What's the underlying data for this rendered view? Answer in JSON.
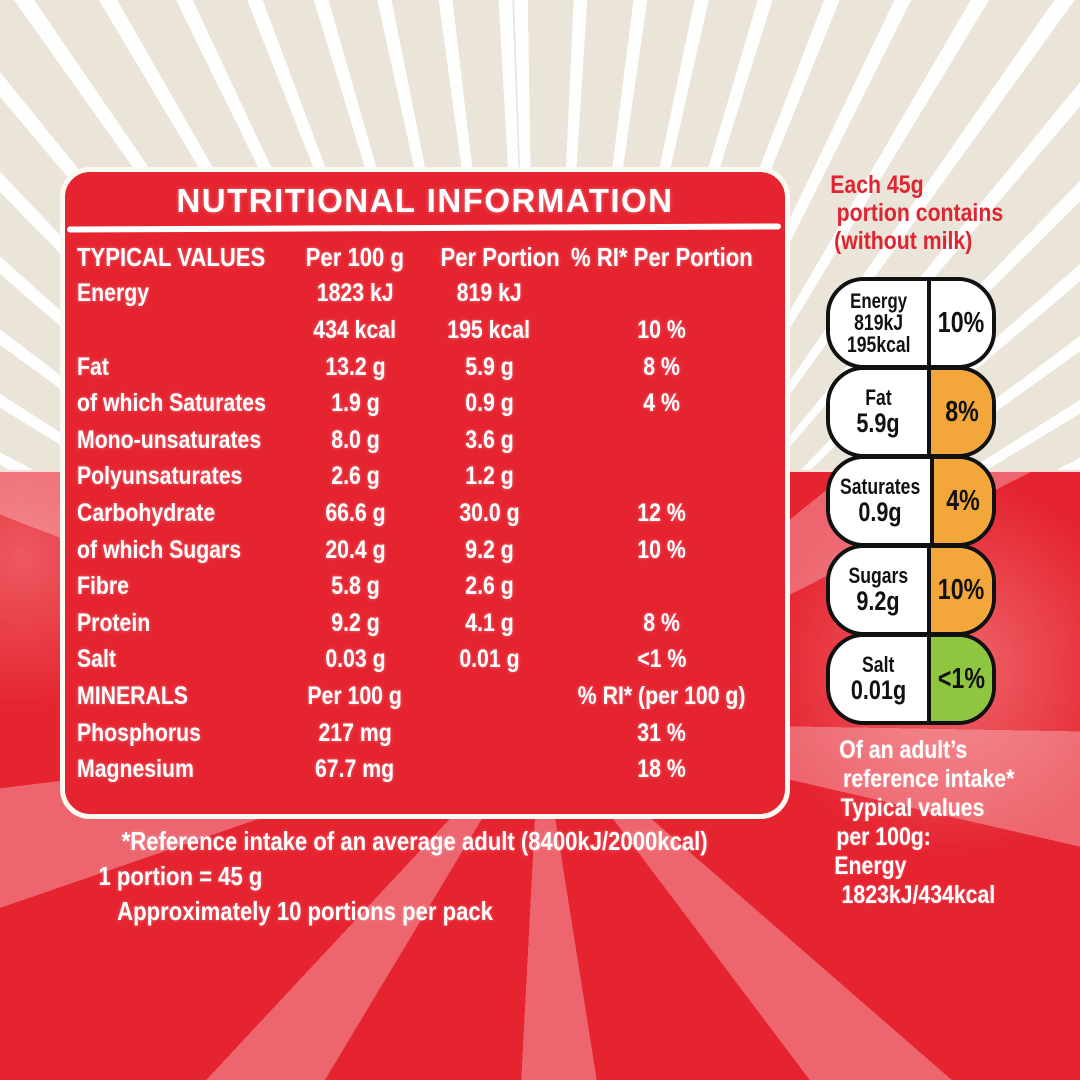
{
  "colors": {
    "brand_red": "#E52430",
    "cream_background": "#EAE5D8",
    "ray_white": "#FFFFFF",
    "amber": "#F3A73A",
    "green": "#8EC63F",
    "panel_text": "#FFFFFF",
    "pill_text": "#111111"
  },
  "panel": {
    "title": "NUTRITIONAL INFORMATION",
    "columns": [
      "TYPICAL VALUES",
      "Per 100 g",
      "Per Portion",
      "% RI* Per Portion"
    ],
    "rows": [
      {
        "label": "Energy",
        "per100": "1823 kJ",
        "portion": "819 kJ",
        "ri": ""
      },
      {
        "label": "",
        "per100": "434 kcal",
        "portion": "195 kcal",
        "ri": "10 %"
      },
      {
        "label": "Fat",
        "per100": "13.2 g",
        "portion": "5.9 g",
        "ri": "8 %"
      },
      {
        "label": "of which Saturates",
        "per100": "1.9 g",
        "portion": "0.9 g",
        "ri": "4 %"
      },
      {
        "label": "Mono-unsaturates",
        "per100": "8.0 g",
        "portion": "3.6 g",
        "ri": ""
      },
      {
        "label": "Polyunsaturates",
        "per100": "2.6 g",
        "portion": "1.2 g",
        "ri": ""
      },
      {
        "label": "Carbohydrate",
        "per100": "66.6 g",
        "portion": "30.0 g",
        "ri": "12 %"
      },
      {
        "label": "of which Sugars",
        "per100": "20.4 g",
        "portion": "9.2 g",
        "ri": "10 %"
      },
      {
        "label": "Fibre",
        "per100": "5.8 g",
        "portion": "2.6 g",
        "ri": ""
      },
      {
        "label": "Protein",
        "per100": "9.2 g",
        "portion": "4.1 g",
        "ri": "8 %"
      },
      {
        "label": "Salt",
        "per100": "0.03 g",
        "portion": "0.01 g",
        "ri": "<1 %"
      },
      {
        "label": "MINERALS",
        "per100": "Per 100 g",
        "portion": "",
        "ri": "% RI* (per 100 g)"
      },
      {
        "label": "Phosphorus",
        "per100": "217 mg",
        "portion": "",
        "ri": "31 %"
      },
      {
        "label": "Magnesium",
        "per100": "67.7 mg",
        "portion": "",
        "ri": "18 %"
      }
    ],
    "footnotes": [
      "*Reference intake of an average adult (8400kJ/2000kcal)",
      "1 portion = 45 g",
      "Approximately 10 portions per pack"
    ]
  },
  "traffic_lights": {
    "heading_lines": [
      "Each 45g",
      "portion contains",
      "(without milk)"
    ],
    "pills": [
      {
        "name": "Energy",
        "line1": "819kJ",
        "line2": "195kcal",
        "ri": "10%",
        "ri_color": "#FFFFFF"
      },
      {
        "name": "Fat",
        "line1": "5.9g",
        "line2": "",
        "ri": "8%",
        "ri_color": "#F3A73A"
      },
      {
        "name": "Saturates",
        "line1": "0.9g",
        "line2": "",
        "ri": "4%",
        "ri_color": "#F3A73A"
      },
      {
        "name": "Sugars",
        "line1": "9.2g",
        "line2": "",
        "ri": "10%",
        "ri_color": "#F3A73A"
      },
      {
        "name": "Salt",
        "line1": "0.01g",
        "line2": "",
        "ri": "<1%",
        "ri_color": "#8EC63F"
      }
    ],
    "footer_lines": [
      "Of an adult’s",
      "reference intake*",
      "Typical values",
      "per 100g:",
      "Energy",
      "1823kJ/434kcal"
    ]
  }
}
